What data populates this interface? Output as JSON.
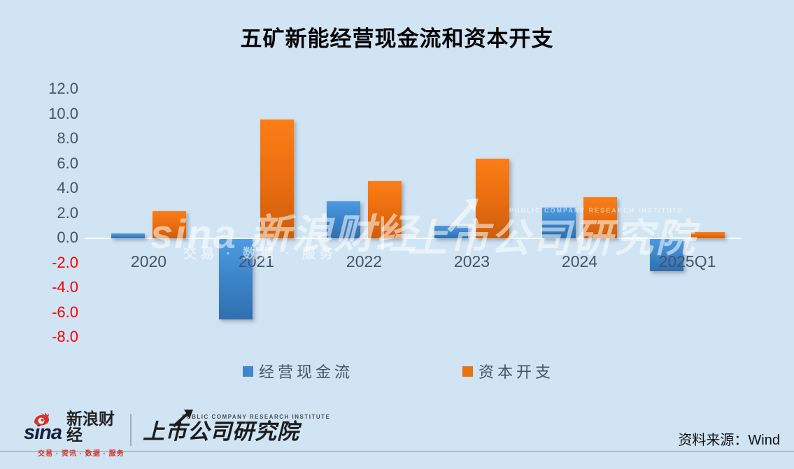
{
  "title": "五矿新能经营现金流和资本开支",
  "chart_data": {
    "type": "bar",
    "title": "五矿新能经营现金流和资本开支",
    "categories": [
      "2020",
      "2021",
      "2022",
      "2023",
      "2024",
      "2025Q1"
    ],
    "series": [
      {
        "name": "经营现金流",
        "color": "#3e87cf",
        "values": [
          0.4,
          -6.5,
          3.0,
          1.0,
          2.5,
          -2.6
        ]
      },
      {
        "name": "资本开支",
        "color": "#e9710e",
        "values": [
          2.2,
          9.6,
          4.6,
          6.4,
          3.3,
          0.5
        ]
      }
    ],
    "xlabel": "",
    "ylabel": "",
    "ylim": [
      -8,
      12
    ],
    "ytick_step": 2,
    "ytick_decimals": 1,
    "grid": false,
    "legend_position": "bottom",
    "tick_color_positive": "#44546a",
    "tick_color_negative": "#ff0000"
  },
  "watermark": {
    "left_brand": "sina 新浪财经",
    "left_tagline": "交易 · 数据 · 服务",
    "divider": "|",
    "right_tagline": "PUBLIC COMPANY RESEARCH INSTITUTE",
    "right_brand": "上市公司研究院"
  },
  "footer": {
    "sina_logo": "sina",
    "sina_brand": "新浪财经",
    "sina_tagline": "交易 · 资讯 · 数据 · 服务",
    "institute_en": "PUBLIC COMPANY RESEARCH INSTITUTE",
    "institute_cn": "上市公司研究院",
    "source": "资料来源：Wind"
  },
  "colors": {
    "background": "#d0e4f4",
    "bar_blue": "#3e87cf",
    "bar_orange": "#e9710e"
  }
}
